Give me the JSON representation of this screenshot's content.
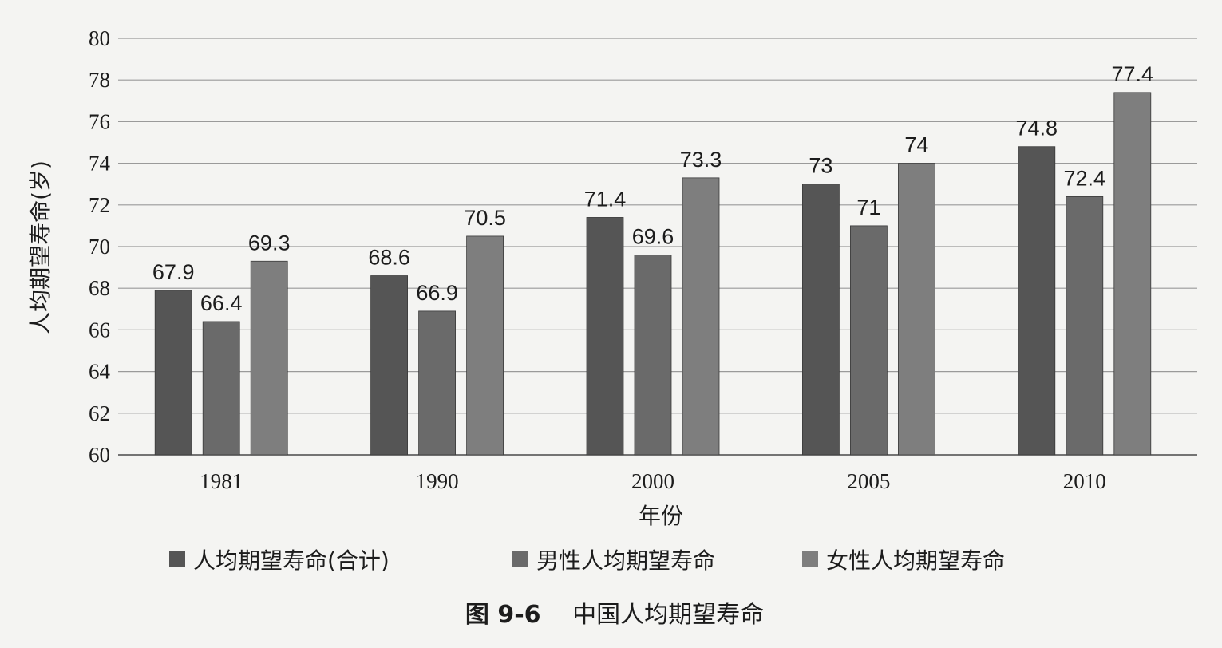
{
  "chart_data": {
    "type": "bar",
    "categories": [
      "1981",
      "1990",
      "2000",
      "2005",
      "2010"
    ],
    "series": [
      {
        "name": "人均期望寿命(合计)",
        "values": [
          67.9,
          68.6,
          71.4,
          73,
          74.8
        ],
        "color": "#555555"
      },
      {
        "name": "男性人均期望寿命",
        "values": [
          66.4,
          66.9,
          69.6,
          71,
          72.4
        ],
        "color": "#6a6a6a"
      },
      {
        "name": "女性人均期望寿命",
        "values": [
          69.3,
          70.5,
          73.3,
          74,
          77.4
        ],
        "color": "#7e7e7e"
      }
    ],
    "data_labels": [
      [
        "67.9",
        "68.6",
        "71.4",
        "73",
        "74.8"
      ],
      [
        "66.4",
        "66.9",
        "69.6",
        "71",
        "72.4"
      ],
      [
        "69.3",
        "70.5",
        "73.3",
        "74",
        "77.4"
      ]
    ],
    "xlabel": "年份",
    "ylabel": "人均期望寿命(岁)",
    "ylim": [
      60,
      80
    ],
    "yticks": [
      "60",
      "62",
      "64",
      "66",
      "68",
      "70",
      "72",
      "74",
      "76",
      "78",
      "80"
    ],
    "grid": true,
    "legend_position": "bottom"
  },
  "caption": {
    "number": "图 9-6",
    "text": "中国人均期望寿命"
  }
}
